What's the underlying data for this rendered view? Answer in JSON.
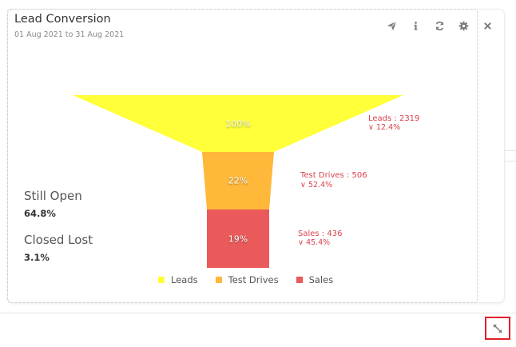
{
  "widget": {
    "title": "Lead Conversion",
    "date_range": "01 Aug 2021 to 31 Aug 2021"
  },
  "toolbar": {
    "icons": [
      "send-icon",
      "info-icon",
      "refresh-icon",
      "gear-icon",
      "close-icon"
    ]
  },
  "summary": {
    "still_open_label": "Still Open",
    "still_open_value": "64.8%",
    "closed_lost_label": "Closed Lost",
    "closed_lost_value": "3.1%"
  },
  "chart_data": {
    "type": "funnel",
    "stages": [
      {
        "name": "Leads",
        "count": 2319,
        "percent": 100,
        "percent_label": "100%",
        "side_label": "Leads : 2319",
        "drop_label": "∨ 12.4%",
        "color": "#ffff3a"
      },
      {
        "name": "Test Drives",
        "count": 506,
        "percent": 22,
        "percent_label": "22%",
        "side_label": "Test Drives : 506",
        "drop_label": "∨ 52.4%",
        "color": "#ffb83a"
      },
      {
        "name": "Sales",
        "count": 436,
        "percent": 19,
        "percent_label": "19%",
        "side_label": "Sales : 436",
        "drop_label": "∨ 45.4%",
        "color": "#ea5a5a"
      }
    ],
    "legend": [
      {
        "name": "Leads",
        "color": "#ffff3a"
      },
      {
        "name": "Test Drives",
        "color": "#ffb83a"
      },
      {
        "name": "Sales",
        "color": "#ea5a5a"
      }
    ],
    "legend_position": "bottom"
  },
  "footer": {
    "expand_icon": "expand-icon"
  }
}
